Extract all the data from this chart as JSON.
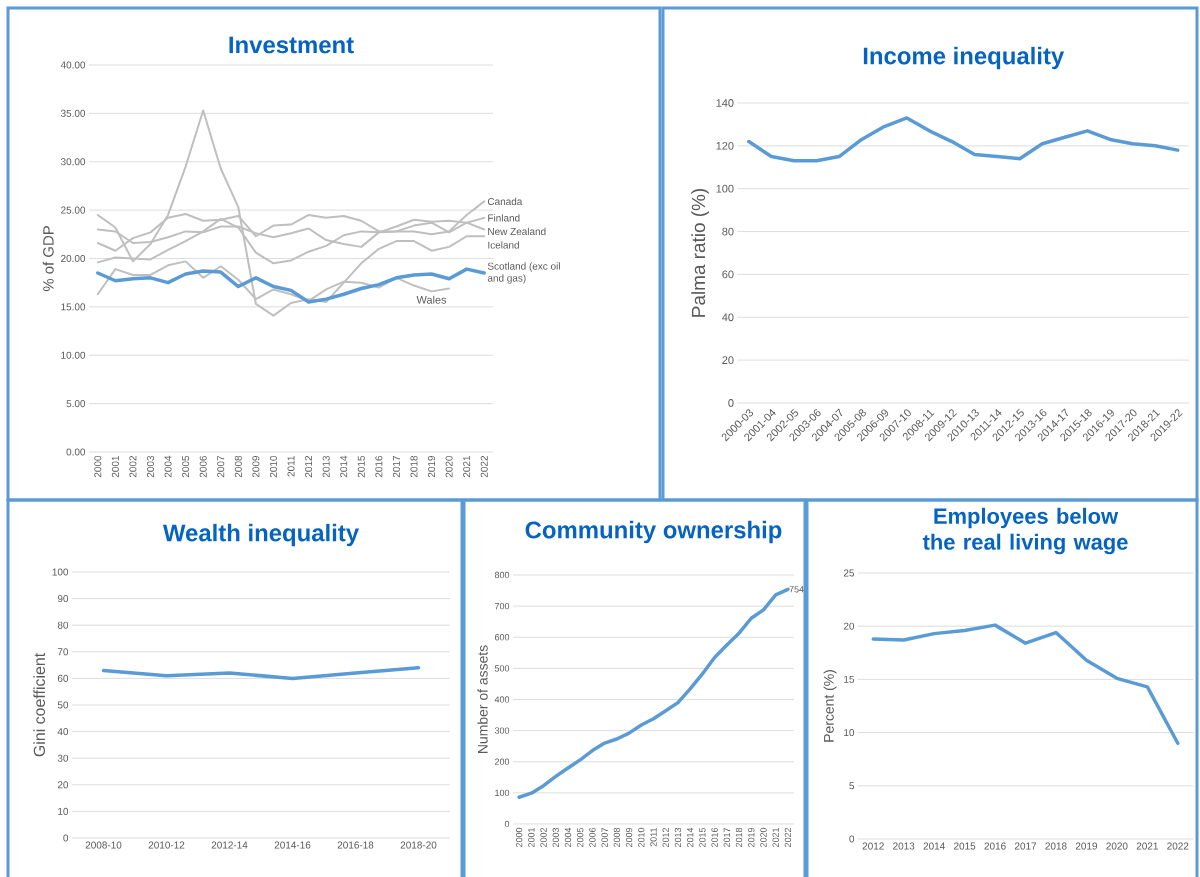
{
  "chart_data": [
    {
      "type": "line",
      "title": "Investment",
      "ylabel": "% of GDP",
      "categories": [
        "2000",
        "2001",
        "2002",
        "2003",
        "2004",
        "2005",
        "2006",
        "2007",
        "2008",
        "2009",
        "2010",
        "2011",
        "2012",
        "2013",
        "2014",
        "2015",
        "2016",
        "2017",
        "2018",
        "2019",
        "2020",
        "2021",
        "2022"
      ],
      "ylim": [
        0,
        40
      ],
      "yticks": [
        {
          "value": 0,
          "label": "0.00"
        },
        {
          "value": 5,
          "label": "5.00"
        },
        {
          "value": 10,
          "label": "10.00"
        },
        {
          "value": 15,
          "label": "15.00"
        },
        {
          "value": 20,
          "label": "20.00"
        },
        {
          "value": 25,
          "label": "25.00"
        },
        {
          "value": 30,
          "label": "30.00"
        },
        {
          "value": 35,
          "label": "35.00"
        },
        {
          "value": 40,
          "label": "40.00"
        }
      ],
      "grid": "y",
      "series": [
        {
          "name": "Canada",
          "color": "#bfbfbf",
          "values": [
            21.6,
            20.8,
            22.1,
            22.7,
            24.2,
            24.6,
            23.9,
            24.0,
            24.4,
            22.3,
            23.4,
            23.5,
            24.5,
            24.2,
            24.4,
            23.9,
            22.8,
            22.8,
            22.8,
            22.5,
            22.8,
            24.5,
            25.9
          ]
        },
        {
          "name": "Finland",
          "color": "#bfbfbf",
          "values": [
            23.0,
            22.8,
            21.6,
            21.7,
            22.2,
            22.8,
            22.7,
            23.3,
            23.3,
            22.6,
            22.2,
            22.6,
            23.1,
            21.9,
            21.5,
            21.2,
            22.7,
            23.3,
            24.0,
            23.8,
            23.9,
            23.7,
            24.2
          ]
        },
        {
          "name": "New Zealand",
          "color": "#bfbfbf",
          "values": [
            19.6,
            20.1,
            20.0,
            19.9,
            20.9,
            21.8,
            22.8,
            24.1,
            23.2,
            20.6,
            19.5,
            19.8,
            20.7,
            21.3,
            22.4,
            22.8,
            22.7,
            22.8,
            23.4,
            23.7,
            22.7,
            23.7,
            23.0
          ]
        },
        {
          "name": "Iceland",
          "color": "#bfbfbf",
          "values": [
            24.5,
            23.2,
            19.7,
            21.5,
            24.5,
            29.5,
            35.3,
            29.3,
            25.3,
            15.3,
            14.1,
            15.4,
            15.8,
            15.5,
            17.5,
            19.5,
            21.0,
            21.8,
            21.8,
            20.8,
            21.2,
            22.3,
            22.3
          ]
        },
        {
          "name": "Wales",
          "color": "#bfbfbf",
          "values": [
            16.3,
            18.9,
            18.3,
            18.3,
            19.3,
            19.7,
            18.0,
            19.2,
            17.8,
            15.8,
            16.8,
            16.3,
            15.6,
            16.8,
            17.6,
            17.5,
            17.0,
            18.0,
            17.2,
            16.6,
            16.9,
            null,
            null
          ]
        },
        {
          "name": "Scotland (exc oil and gas)",
          "color": "#5b9bd5",
          "values": [
            18.5,
            17.7,
            17.9,
            18.0,
            17.5,
            18.4,
            18.7,
            18.6,
            17.1,
            18.0,
            17.1,
            16.7,
            15.5,
            15.8,
            16.3,
            16.9,
            17.3,
            18.0,
            18.3,
            18.4,
            17.9,
            18.9,
            18.5
          ]
        }
      ]
    },
    {
      "type": "line",
      "title": "Income inequality",
      "ylabel": "Palma ratio (%)",
      "categories": [
        "2000-03",
        "2001-04",
        "2002-05",
        "2003-06",
        "2004-07",
        "2005-08",
        "2006-09",
        "2007-10",
        "2008-11",
        "2009-12",
        "2010-13",
        "2011-14",
        "2012-15",
        "2013-16",
        "2014-17",
        "2015-18",
        "2016-19",
        "2017-20",
        "2018-21",
        "2019-22"
      ],
      "ylim": [
        0,
        140
      ],
      "yticks": [
        0,
        20,
        40,
        60,
        80,
        100,
        120,
        140
      ],
      "grid": "y",
      "color": "#5b9bd5",
      "values": [
        122,
        115,
        113,
        113,
        115,
        123,
        129,
        133,
        127,
        122,
        116,
        115,
        114,
        121,
        124,
        127,
        123,
        121,
        120,
        118
      ]
    },
    {
      "type": "line",
      "title": "Wealth inequality",
      "ylabel": "Gini coefficient",
      "categories": [
        "2008-10",
        "2010-12",
        "2012-14",
        "2014-16",
        "2016-18",
        "2018-20"
      ],
      "ylim": [
        0,
        100
      ],
      "yticks": [
        0,
        10,
        20,
        30,
        40,
        50,
        60,
        70,
        80,
        90,
        100
      ],
      "grid": "y",
      "color": "#5b9bd5",
      "values": [
        63,
        61,
        62,
        60,
        62,
        64
      ]
    },
    {
      "type": "line",
      "title": "Community ownership",
      "ylabel": "Number of assets",
      "categories": [
        "2000",
        "2001",
        "2002",
        "2003",
        "2004",
        "2005",
        "2006",
        "2007",
        "2008",
        "2009",
        "2010",
        "2011",
        "2012",
        "2013",
        "2014",
        "2015",
        "2016",
        "2017",
        "2018",
        "2019",
        "2020",
        "2021",
        "2022"
      ],
      "ylim": [
        0,
        800
      ],
      "yticks": [
        0,
        100,
        200,
        300,
        400,
        500,
        600,
        700,
        800
      ],
      "grid": "y",
      "color": "#5b9bd5",
      "values": [
        86,
        99,
        123,
        153,
        180,
        206,
        236,
        260,
        273,
        292,
        318,
        338,
        364,
        390,
        434,
        482,
        535,
        575,
        613,
        661,
        688,
        736,
        754
      ],
      "value_labels": [
        null,
        null,
        null,
        null,
        null,
        null,
        null,
        null,
        null,
        null,
        null,
        null,
        null,
        null,
        null,
        null,
        null,
        null,
        null,
        null,
        null,
        null,
        "754"
      ]
    },
    {
      "type": "line",
      "title": "Employees below the real living wage",
      "ylabel": "Percent (%)",
      "categories": [
        "2012",
        "2013",
        "2014",
        "2015",
        "2016",
        "2017",
        "2018",
        "2019",
        "2020",
        "2021",
        "2022"
      ],
      "ylim": [
        0,
        25
      ],
      "yticks": [
        0,
        5,
        10,
        15,
        20,
        25
      ],
      "grid": "y",
      "color": "#5b9bd5",
      "values": [
        18.8,
        18.7,
        19.3,
        19.6,
        20.1,
        18.4,
        19.4,
        16.8,
        15.1,
        14.3,
        9.0
      ]
    }
  ]
}
